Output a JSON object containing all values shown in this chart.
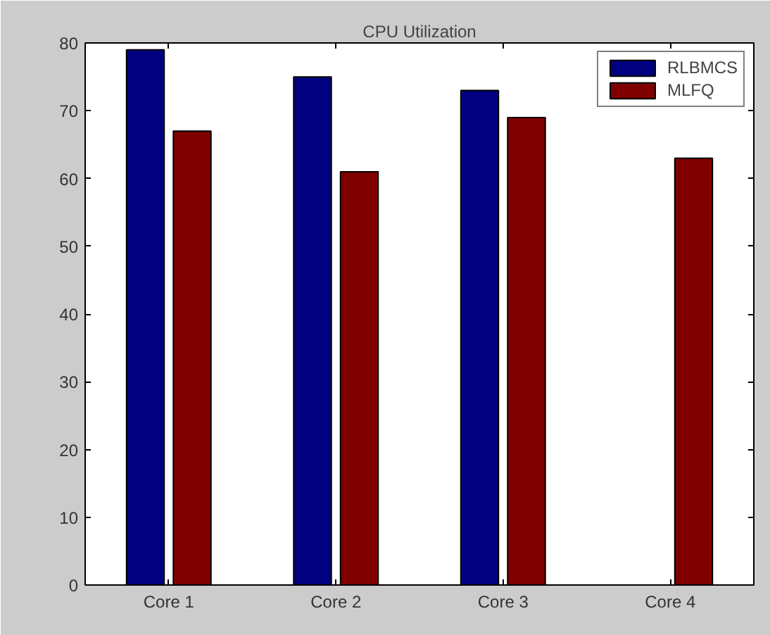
{
  "chart_data": {
    "type": "bar",
    "title": "CPU Utilization",
    "categories": [
      "Core 1",
      "Core 2",
      "Core 3",
      "Core 4"
    ],
    "series": [
      {
        "name": "RLBMCS",
        "color": "#000080",
        "values": [
          79,
          75,
          73,
          null
        ]
      },
      {
        "name": "MLFQ",
        "color": "#800000",
        "values": [
          67,
          61,
          69,
          63
        ]
      }
    ],
    "ylim": [
      0,
      80
    ],
    "yticks": [
      0,
      10,
      20,
      30,
      40,
      50,
      60,
      70,
      80
    ],
    "grid": false,
    "legend": "top right"
  }
}
